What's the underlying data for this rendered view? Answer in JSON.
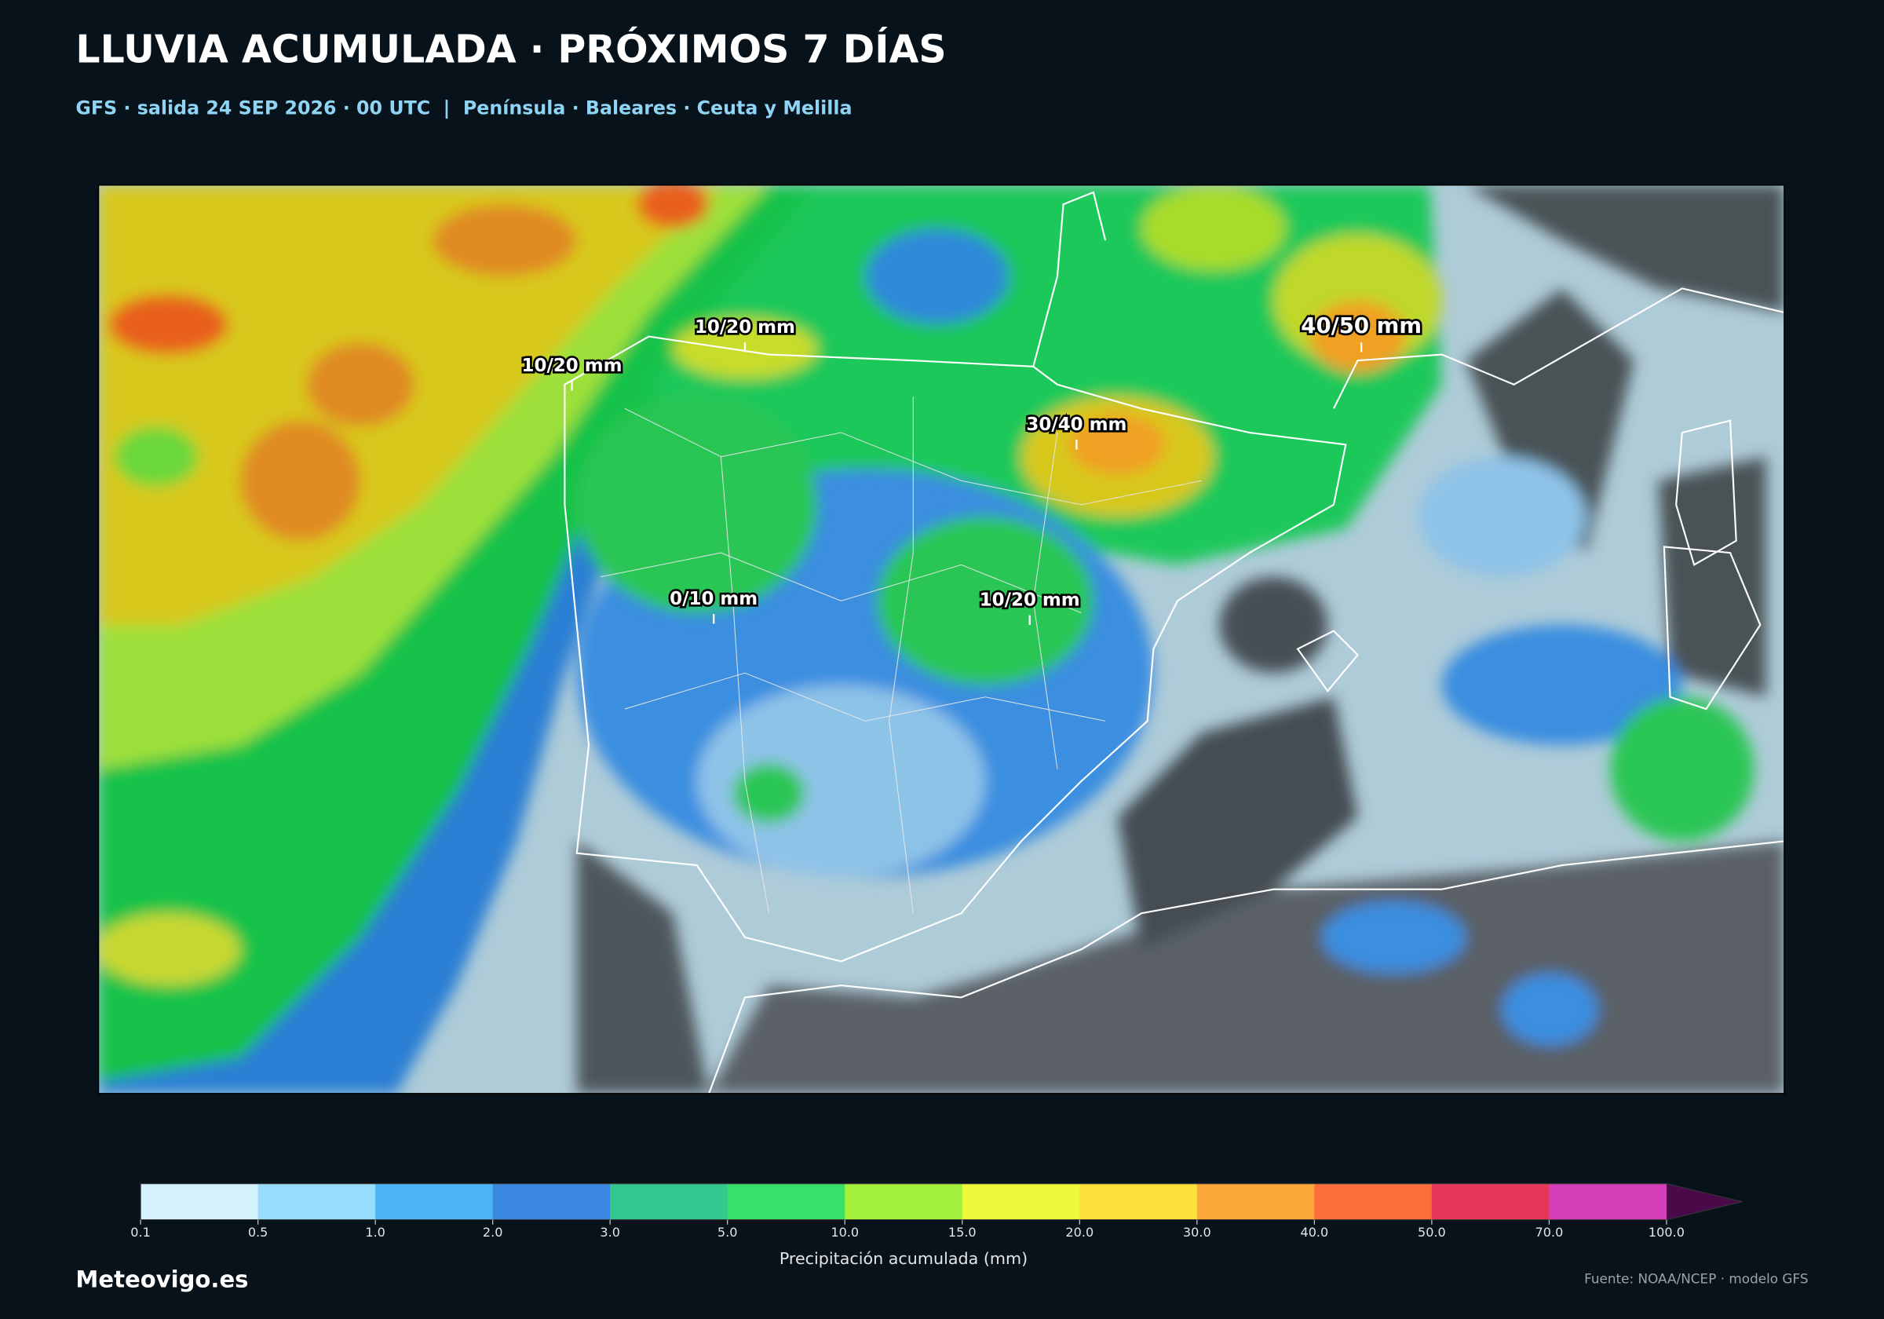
{
  "header": {
    "title": "LLUVIA ACUMULADA · PRÓXIMOS 7 DÍAS",
    "subtitle": "GFS · salida 24 SEP 2026 · 00 UTC  |  Península · Baleares · Ceuta y Melilla"
  },
  "map_labels": [
    "10/20 mm",
    "10/20 mm",
    "30/40 mm",
    "40/50 mm",
    "0/10 mm",
    "10/20 mm"
  ],
  "legend": {
    "label": "Precipitación acumulada (mm)",
    "ticks": [
      0.1,
      0.5,
      {
        "value": 1,
        "label": "1.0"
      },
      {
        "value": 2,
        "label": "2.0"
      },
      {
        "value": 3,
        "label": "3.0"
      },
      {
        "value": 5,
        "label": "5.0"
      },
      {
        "value": 10,
        "label": "10.0"
      },
      {
        "value": 15,
        "label": "15.0"
      },
      {
        "value": 20,
        "label": "20.0"
      },
      {
        "value": 30,
        "label": "30.0"
      },
      {
        "value": 40,
        "label": "40.0"
      },
      {
        "value": 50,
        "label": "50.0"
      },
      {
        "value": 70,
        "label": "70.0"
      },
      {
        "value": 100,
        "label": "100.0"
      }
    ],
    "colors": [
      "#d5f3ff",
      "#98defc",
      "#4db4f5",
      "#3b88e0",
      "#34c78f",
      "#38e06b",
      "#a2f03c",
      "#eef83a",
      "#fde13a",
      "#fca73a",
      "#fb6d3a",
      "#e6365a",
      "#d63fb9",
      "#4a0a4a"
    ]
  },
  "footer": {
    "brand": "Meteovigo.es",
    "source": "Fuente: NOAA/NCEP · modelo GFS"
  }
}
